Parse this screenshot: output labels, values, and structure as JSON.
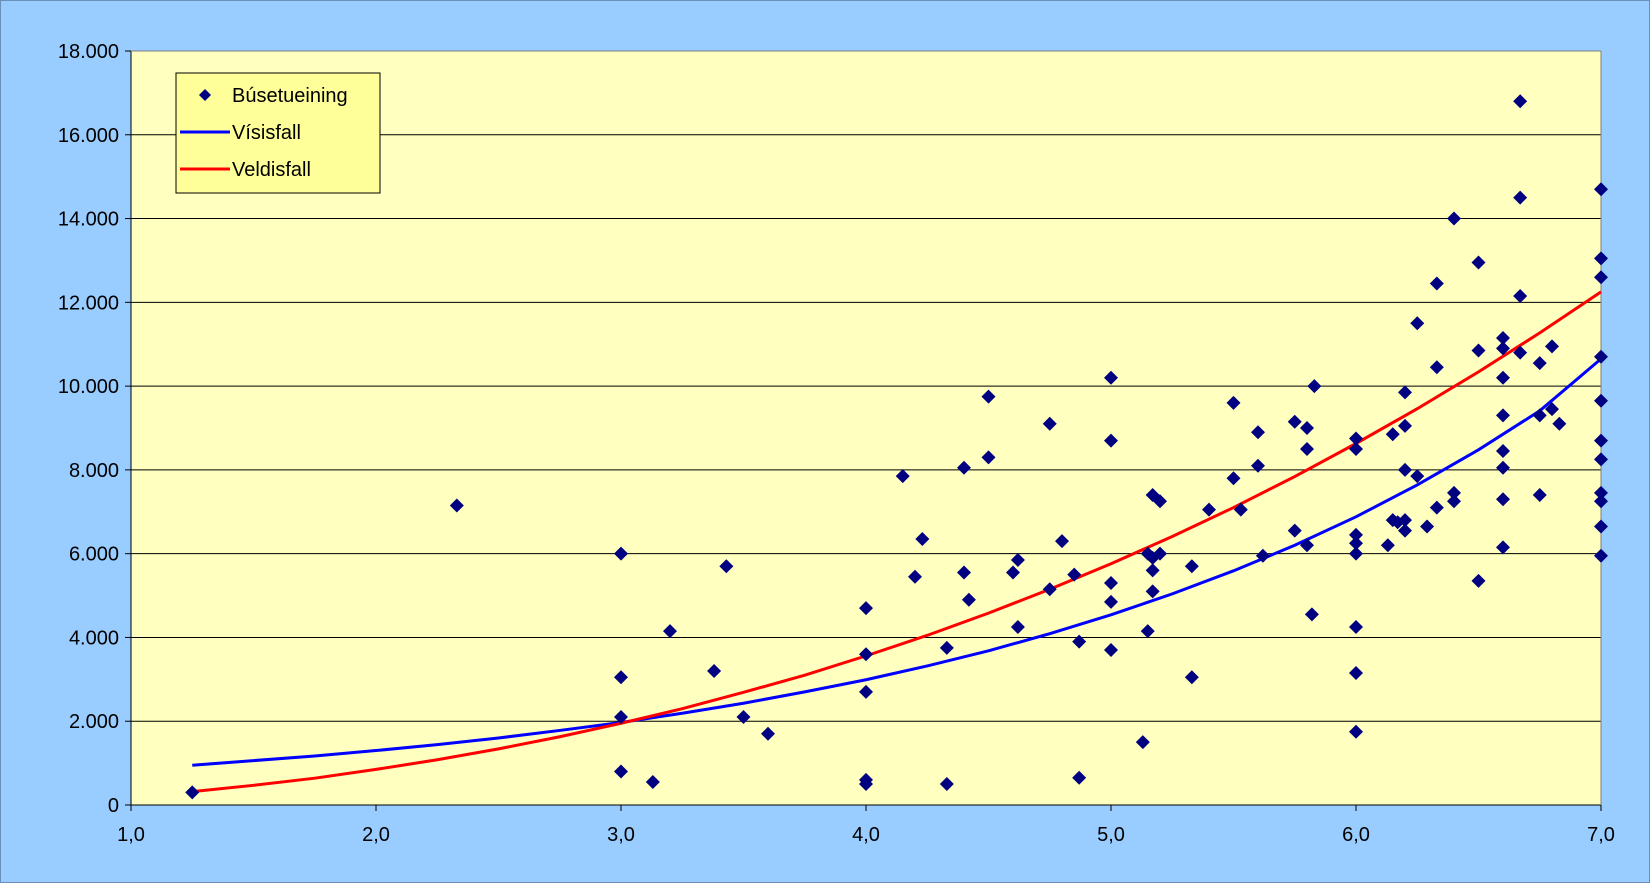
{
  "chart_data": {
    "type": "scatter",
    "title": "",
    "xlabel": "",
    "ylabel": "",
    "xlim": [
      1.0,
      7.0
    ],
    "ylim": [
      0,
      18000
    ],
    "x_ticks": [
      1.0,
      2.0,
      3.0,
      4.0,
      5.0,
      6.0,
      7.0
    ],
    "x_tick_labels": [
      "1,0",
      "2,0",
      "3,0",
      "4,0",
      "5,0",
      "6,0",
      "7,0"
    ],
    "y_ticks": [
      0,
      2000,
      4000,
      6000,
      8000,
      10000,
      12000,
      14000,
      16000,
      18000
    ],
    "y_tick_labels": [
      "0",
      "2.000",
      "4.000",
      "6.000",
      "8.000",
      "10.000",
      "12.000",
      "14.000",
      "16.000",
      "18.000"
    ],
    "grid": "horizontal",
    "legend_position": "top-left",
    "colors": {
      "background": "#99ccff",
      "plot_area": "#ffffc0",
      "points": "#000080",
      "exponential": "#0000ff",
      "power": "#ff0000",
      "legend_bg": "#ffff99"
    },
    "series": [
      {
        "name": "Búsetueining",
        "kind": "scatter",
        "points": [
          [
            1.25,
            300
          ],
          [
            2.33,
            7150
          ],
          [
            3.0,
            6000
          ],
          [
            3.0,
            3050
          ],
          [
            3.0,
            2100
          ],
          [
            3.0,
            800
          ],
          [
            3.13,
            550
          ],
          [
            3.2,
            4150
          ],
          [
            3.38,
            3200
          ],
          [
            3.43,
            5700
          ],
          [
            3.5,
            2100
          ],
          [
            3.6,
            1700
          ],
          [
            4.0,
            4700
          ],
          [
            4.0,
            3600
          ],
          [
            4.0,
            2700
          ],
          [
            4.0,
            600
          ],
          [
            4.0,
            500
          ],
          [
            4.15,
            7850
          ],
          [
            4.2,
            5450
          ],
          [
            4.23,
            6350
          ],
          [
            4.33,
            3750
          ],
          [
            4.33,
            500
          ],
          [
            4.4,
            8050
          ],
          [
            4.4,
            5550
          ],
          [
            4.42,
            4900
          ],
          [
            4.5,
            9750
          ],
          [
            4.5,
            8300
          ],
          [
            4.6,
            5550
          ],
          [
            4.62,
            5850
          ],
          [
            4.62,
            4250
          ],
          [
            4.75,
            9100
          ],
          [
            4.75,
            5150
          ],
          [
            4.8,
            6300
          ],
          [
            4.85,
            5500
          ],
          [
            4.87,
            3900
          ],
          [
            4.87,
            650
          ],
          [
            5.0,
            10200
          ],
          [
            5.0,
            8700
          ],
          [
            5.0,
            5300
          ],
          [
            5.0,
            4850
          ],
          [
            5.0,
            3700
          ],
          [
            5.13,
            1500
          ],
          [
            5.15,
            6000
          ],
          [
            5.15,
            4150
          ],
          [
            5.17,
            7400
          ],
          [
            5.17,
            5900
          ],
          [
            5.17,
            5600
          ],
          [
            5.17,
            5100
          ],
          [
            5.2,
            7250
          ],
          [
            5.2,
            6000
          ],
          [
            5.33,
            5700
          ],
          [
            5.33,
            3050
          ],
          [
            5.4,
            7050
          ],
          [
            5.5,
            9600
          ],
          [
            5.5,
            7800
          ],
          [
            5.53,
            7050
          ],
          [
            5.6,
            8900
          ],
          [
            5.6,
            8100
          ],
          [
            5.62,
            5950
          ],
          [
            5.75,
            9150
          ],
          [
            5.75,
            6550
          ],
          [
            5.8,
            9000
          ],
          [
            5.8,
            8500
          ],
          [
            5.8,
            6200
          ],
          [
            5.82,
            4550
          ],
          [
            5.83,
            10000
          ],
          [
            6.0,
            8750
          ],
          [
            6.0,
            8500
          ],
          [
            6.0,
            6450
          ],
          [
            6.0,
            6250
          ],
          [
            6.0,
            6000
          ],
          [
            6.0,
            4250
          ],
          [
            6.0,
            3150
          ],
          [
            6.0,
            1750
          ],
          [
            6.13,
            6200
          ],
          [
            6.15,
            8850
          ],
          [
            6.15,
            6800
          ],
          [
            6.17,
            6750
          ],
          [
            6.2,
            9850
          ],
          [
            6.2,
            9050
          ],
          [
            6.2,
            8000
          ],
          [
            6.2,
            6800
          ],
          [
            6.2,
            6550
          ],
          [
            6.25,
            11500
          ],
          [
            6.25,
            7850
          ],
          [
            6.29,
            6650
          ],
          [
            6.33,
            12450
          ],
          [
            6.33,
            10450
          ],
          [
            6.33,
            7100
          ],
          [
            6.4,
            14000
          ],
          [
            6.4,
            7450
          ],
          [
            6.4,
            7250
          ],
          [
            6.5,
            12950
          ],
          [
            6.5,
            10850
          ],
          [
            6.5,
            5350
          ],
          [
            6.6,
            11150
          ],
          [
            6.6,
            10900
          ],
          [
            6.6,
            10200
          ],
          [
            6.6,
            9300
          ],
          [
            6.6,
            8450
          ],
          [
            6.6,
            8050
          ],
          [
            6.6,
            7300
          ],
          [
            6.6,
            6150
          ],
          [
            6.67,
            16800
          ],
          [
            6.67,
            14500
          ],
          [
            6.67,
            12150
          ],
          [
            6.67,
            10800
          ],
          [
            6.75,
            10550
          ],
          [
            6.75,
            9300
          ],
          [
            6.75,
            7400
          ],
          [
            6.8,
            10950
          ],
          [
            6.8,
            9450
          ],
          [
            6.83,
            9100
          ],
          [
            7.0,
            14700
          ],
          [
            7.0,
            13050
          ],
          [
            7.0,
            12600
          ],
          [
            7.0,
            10700
          ],
          [
            7.0,
            9650
          ],
          [
            7.0,
            8700
          ],
          [
            7.0,
            8250
          ],
          [
            7.0,
            7450
          ],
          [
            7.0,
            7250
          ],
          [
            7.0,
            6650
          ],
          [
            7.0,
            5950
          ]
        ]
      },
      {
        "name": "Vísisfall",
        "kind": "line",
        "x": [
          1.25,
          1.5,
          1.75,
          2.0,
          2.25,
          2.5,
          2.75,
          3.0,
          3.25,
          3.5,
          3.75,
          4.0,
          4.25,
          4.5,
          4.75,
          5.0,
          5.25,
          5.5,
          5.75,
          6.0,
          6.25,
          6.5,
          6.75,
          7.0
        ],
        "y": [
          950,
          1060,
          1170,
          1300,
          1440,
          1600,
          1780,
          1970,
          2190,
          2430,
          2700,
          2990,
          3320,
          3680,
          4090,
          4540,
          5040,
          5590,
          6200,
          6880,
          7640,
          8480,
          9410,
          10650
        ]
      },
      {
        "name": "Veldisfall",
        "kind": "line",
        "x": [
          1.25,
          1.5,
          1.75,
          2.0,
          2.25,
          2.5,
          2.75,
          3.0,
          3.25,
          3.5,
          3.75,
          4.0,
          4.25,
          4.5,
          4.75,
          5.0,
          5.25,
          5.5,
          5.75,
          6.0,
          6.25,
          6.5,
          6.75,
          7.0
        ],
        "y": [
          320,
          470,
          640,
          850,
          1080,
          1340,
          1630,
          1950,
          2300,
          2690,
          3100,
          3560,
          4050,
          4580,
          5150,
          5760,
          6410,
          7100,
          7840,
          8630,
          9460,
          10340,
          11270,
          12250
        ]
      }
    ]
  }
}
